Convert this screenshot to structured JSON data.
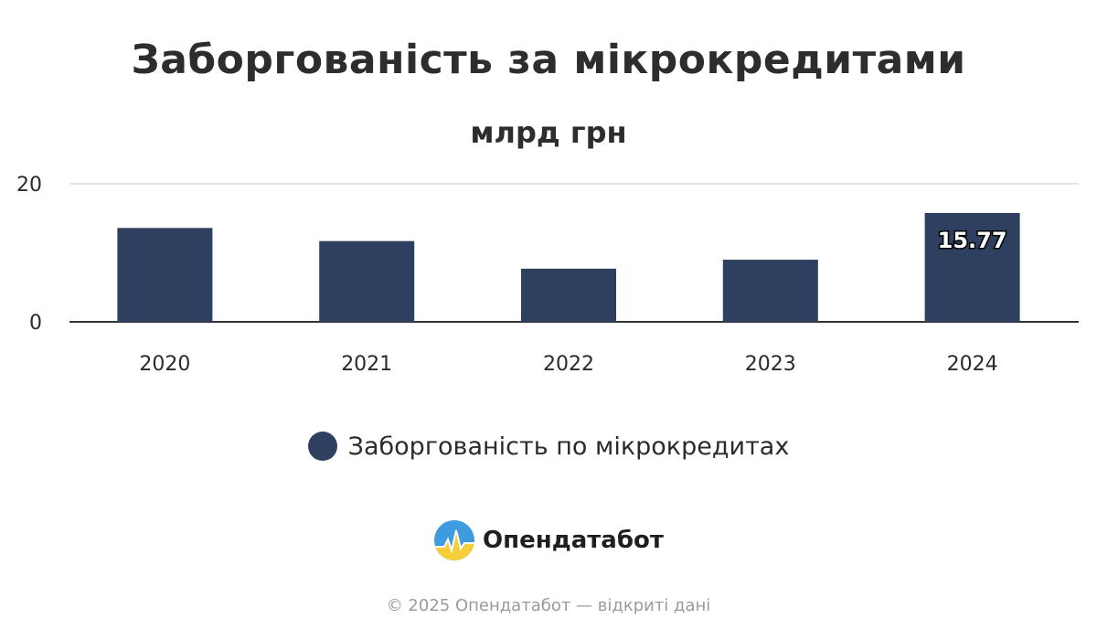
{
  "chart_data": {
    "type": "bar",
    "title": "Заборгованість за мікрокредитами",
    "subtitle": "млрд грн",
    "categories": [
      "2020",
      "2021",
      "2022",
      "2023",
      "2024"
    ],
    "series": [
      {
        "name": "Заборгованість по мікрокредитах",
        "values": [
          13.6,
          11.7,
          7.7,
          9.0,
          15.77
        ]
      }
    ],
    "data_labels": [
      null,
      null,
      null,
      null,
      "15.77"
    ],
    "yticks": [
      "0",
      "20"
    ],
    "ylim": [
      0,
      20
    ],
    "grid": true,
    "legend_position": "bottom-center",
    "bar_color": "#2f3f5f",
    "grid_color": "#e3e3e3",
    "axis_color": "#333333"
  },
  "brand": {
    "name": "Опендатабот",
    "icon": "opendatabot-logo"
  },
  "footer": {
    "text": "© 2025 Опендатабот — відкриті дані"
  }
}
